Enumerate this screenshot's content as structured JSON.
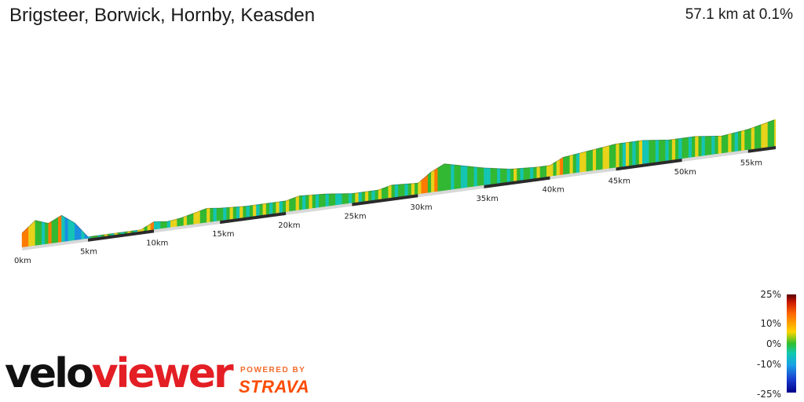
{
  "header": {
    "title": "Brigsteer, Borwick, Hornby, Keasden",
    "summary": "57.1 km at 0.1%"
  },
  "scale": {
    "labels": [
      "25%",
      "10%",
      "0%",
      "-10%",
      "-25%"
    ],
    "colors": {
      "max": "#5a0000",
      "steep_up": "#ff6a00",
      "flat": "#2fbf2f",
      "down": "#1aa0e6",
      "min": "#00008a"
    }
  },
  "branding": {
    "logo_part1": "velo",
    "logo_part2": "viewer",
    "powered_by": "POWERED BY",
    "strava": "STRAVA"
  },
  "chart_data": {
    "type": "area",
    "title": "Brigsteer, Borwick, Hornby, Keasden",
    "distance_km": 57.1,
    "average_gradient_pct": 0.1,
    "x_ticks": [
      "0km",
      "5km",
      "10km",
      "15km",
      "20km",
      "25km",
      "30km",
      "35km",
      "40km",
      "45km",
      "50km",
      "55km"
    ],
    "profile": [
      {
        "km": 0,
        "h": 8
      },
      {
        "km": 1,
        "h": 15
      },
      {
        "km": 2,
        "h": 12
      },
      {
        "km": 3,
        "h": 16
      },
      {
        "km": 4,
        "h": 10
      },
      {
        "km": 5,
        "h": 0
      },
      {
        "km": 7,
        "h": 0
      },
      {
        "km": 9,
        "h": 0
      },
      {
        "km": 10,
        "h": 4
      },
      {
        "km": 11,
        "h": 3
      },
      {
        "km": 12,
        "h": 4
      },
      {
        "km": 13,
        "h": 6
      },
      {
        "km": 14,
        "h": 8
      },
      {
        "km": 15,
        "h": 7
      },
      {
        "km": 17,
        "h": 6
      },
      {
        "km": 19,
        "h": 6
      },
      {
        "km": 20,
        "h": 6
      },
      {
        "km": 21,
        "h": 8
      },
      {
        "km": 23,
        "h": 7
      },
      {
        "km": 25,
        "h": 5
      },
      {
        "km": 27,
        "h": 5
      },
      {
        "km": 28,
        "h": 7
      },
      {
        "km": 30,
        "h": 6
      },
      {
        "km": 31,
        "h": 12
      },
      {
        "km": 32,
        "h": 16
      },
      {
        "km": 34,
        "h": 12
      },
      {
        "km": 35,
        "h": 10
      },
      {
        "km": 37,
        "h": 7
      },
      {
        "km": 39,
        "h": 6
      },
      {
        "km": 40,
        "h": 6
      },
      {
        "km": 41,
        "h": 10
      },
      {
        "km": 43,
        "h": 12
      },
      {
        "km": 45,
        "h": 14
      },
      {
        "km": 47,
        "h": 14
      },
      {
        "km": 49,
        "h": 12
      },
      {
        "km": 51,
        "h": 12
      },
      {
        "km": 53,
        "h": 10
      },
      {
        "km": 55,
        "h": 12
      },
      {
        "km": 57.1,
        "h": 16
      }
    ]
  }
}
